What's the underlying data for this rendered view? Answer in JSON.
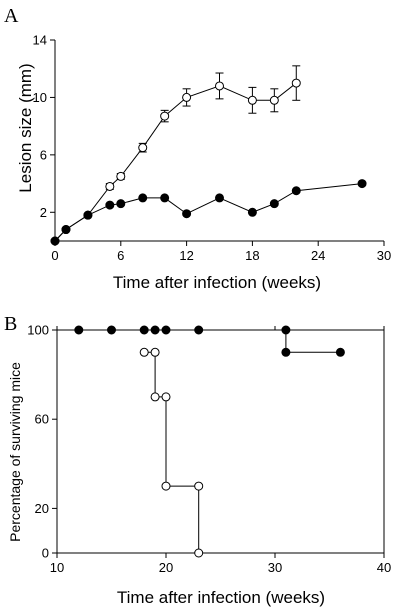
{
  "chart_data": [
    {
      "panel_label": "A",
      "type": "line",
      "xlabel": "Time after infection (weeks)",
      "ylabel": "Lesion size (mm)",
      "xlim": [
        0,
        30
      ],
      "ylim": [
        0,
        14
      ],
      "xticks": [
        0,
        6,
        12,
        18,
        24,
        30
      ],
      "xtick_labels": [
        "0",
        "6",
        "12",
        "18",
        "24",
        "30"
      ],
      "yticks": [
        2,
        6,
        10,
        14
      ],
      "ytick_labels": [
        "2",
        "6",
        "10",
        "14"
      ],
      "grid": false,
      "series": [
        {
          "marker": "open-circle",
          "x": [
            0,
            1,
            3,
            5,
            6,
            8,
            10,
            12,
            15,
            18,
            20,
            22
          ],
          "y": [
            0,
            0.8,
            1.8,
            3.8,
            4.5,
            6.5,
            8.7,
            10.0,
            10.8,
            9.8,
            9.8,
            11.0
          ],
          "err": [
            0,
            0,
            0,
            0.2,
            0.2,
            0.3,
            0.4,
            0.6,
            0.9,
            0.9,
            0.8,
            1.2
          ]
        },
        {
          "marker": "filled-circle",
          "x": [
            0,
            1,
            3,
            5,
            6,
            8,
            10,
            12,
            15,
            18,
            20,
            22,
            28
          ],
          "y": [
            0,
            0.8,
            1.8,
            2.5,
            2.6,
            3.0,
            3.0,
            1.9,
            3.0,
            2.0,
            2.6,
            3.5,
            4.0
          ]
        }
      ]
    },
    {
      "panel_label": "B",
      "type": "line",
      "xlabel": "Time after infection (weeks)",
      "ylabel": "Percentage of surviving mice",
      "xlim": [
        10,
        40
      ],
      "ylim": [
        0,
        100
      ],
      "xticks": [
        10,
        20,
        30,
        40
      ],
      "xtick_labels": [
        "10",
        "20",
        "30",
        "40"
      ],
      "yticks": [
        0,
        20,
        60,
        100
      ],
      "ytick_labels": [
        "0",
        "20",
        "60",
        "100"
      ],
      "grid": false,
      "series": [
        {
          "marker": "filled-circle",
          "step": true,
          "x": [
            12,
            15,
            18,
            19,
            20,
            23,
            31,
            31,
            36
          ],
          "y": [
            100,
            100,
            100,
            100,
            100,
            100,
            100,
            90,
            90
          ]
        },
        {
          "marker": "open-circle",
          "step": true,
          "x": [
            18,
            19,
            19,
            20,
            20,
            23,
            23
          ],
          "y": [
            90,
            90,
            70,
            70,
            30,
            30,
            0
          ]
        }
      ]
    }
  ]
}
